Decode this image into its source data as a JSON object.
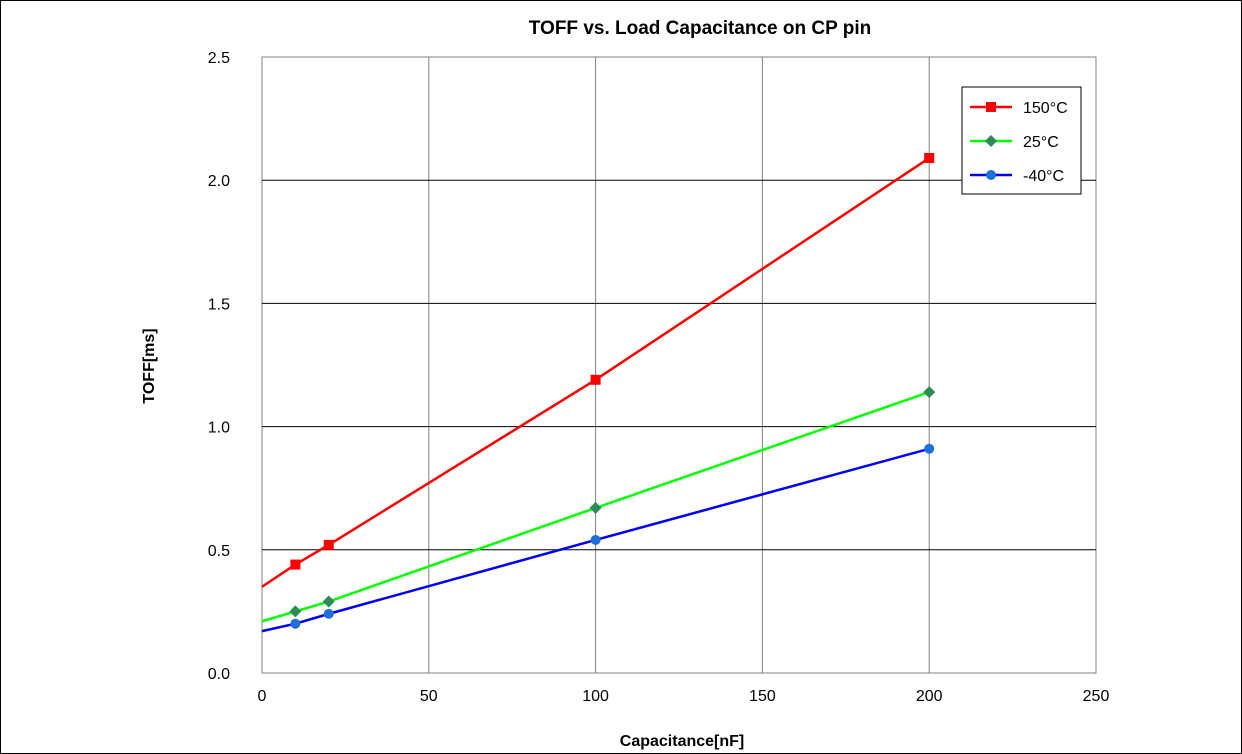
{
  "chart_data": {
    "type": "line",
    "title": "TOFF vs. Load Capacitance on CP pin",
    "xlabel": "Capacitance[nF]",
    "ylabel": "TOFF[ms]",
    "xlim": [
      0,
      250
    ],
    "ylim": [
      0,
      2.5
    ],
    "xticks": [
      0,
      50,
      100,
      150,
      200,
      250
    ],
    "xtick_labels": [
      "0",
      "50",
      "100",
      "150",
      "200",
      "250"
    ],
    "yticks": [
      0,
      0.5,
      1.0,
      1.5,
      2.0,
      2.5
    ],
    "ytick_labels": [
      "0.0",
      "0.5",
      "1.0",
      "1.5",
      "2.0",
      "2.5"
    ],
    "grid": true,
    "legend_position": "top-right",
    "series": [
      {
        "name": "150°C",
        "color": "#ff0000",
        "marker": "square",
        "marker_color": "#ff0000",
        "x": [
          10,
          20,
          100,
          200
        ],
        "y": [
          0.44,
          0.52,
          1.19,
          2.09
        ],
        "fit_start": [
          0,
          0.35
        ]
      },
      {
        "name": "25°C",
        "color": "#00ff00",
        "marker": "diamond",
        "marker_color": "#2e8b57",
        "x": [
          10,
          20,
          100,
          200
        ],
        "y": [
          0.25,
          0.29,
          0.67,
          1.14
        ],
        "fit_start": [
          0,
          0.21
        ]
      },
      {
        "name": "-40°C",
        "color": "#0000ff",
        "marker": "circle",
        "marker_color": "#1e6fd9",
        "x": [
          10,
          20,
          100,
          200
        ],
        "y": [
          0.2,
          0.24,
          0.54,
          0.91
        ],
        "fit_start": [
          0,
          0.17
        ]
      }
    ]
  }
}
